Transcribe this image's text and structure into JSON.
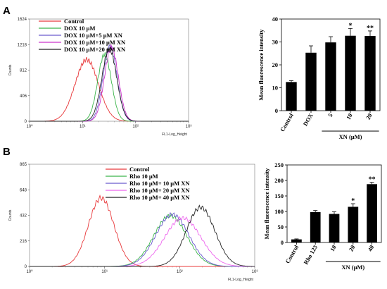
{
  "chart_data": [
    {
      "panel": "A",
      "type": "line",
      "subtype": "flow-cytometry-histogram",
      "xlabel": "FL1-Log_Height",
      "ylabel": "Counts",
      "x_scale": "log",
      "xlim": [
        1,
        1000
      ],
      "ylim": [
        0,
        1624
      ],
      "x_ticks": [
        "10⁰",
        "10¹",
        "10²",
        "10³"
      ],
      "y_ticks": [
        "0",
        "406",
        "812",
        "1218",
        "1624"
      ],
      "legend_placement": "top-left",
      "series": [
        {
          "name": "Control",
          "color": "#e8383a",
          "peak_x": 12,
          "peak_y": 980,
          "width": 0.22
        },
        {
          "name": "DOX 10 μM",
          "color": "#3bb54a",
          "peak_x": 26,
          "peak_y": 1060,
          "width": 0.13
        },
        {
          "name": "DOX 10 μM+5 μM XN",
          "color": "#6a5acd",
          "peak_x": 33,
          "peak_y": 1185,
          "width": 0.13
        },
        {
          "name": "DOX 10 μM+10 μM XN",
          "color": "#cc33cc",
          "peak_x": 35,
          "peak_y": 1175,
          "width": 0.13
        },
        {
          "name": "DOX 10 μM+20 μM XN",
          "color": "#222222",
          "peak_x": 32,
          "peak_y": 1150,
          "width": 0.14
        }
      ]
    },
    {
      "panel": "A",
      "type": "bar",
      "ylabel": "Mean fluorescence intensity",
      "ylim": [
        0,
        40
      ],
      "y_ticks": [
        0,
        10,
        20,
        30,
        40
      ],
      "categories": [
        "Control",
        "DOX",
        "5",
        "10",
        "20"
      ],
      "values": [
        12.5,
        25.3,
        29.8,
        32.7,
        32.6
      ],
      "errors": [
        0.6,
        3.0,
        2.5,
        3.2,
        2.2
      ],
      "significance": [
        "",
        "",
        "",
        "*",
        "**"
      ],
      "group_label": "XN (μM)",
      "group_span": [
        2,
        4
      ]
    },
    {
      "panel": "B",
      "type": "line",
      "subtype": "flow-cytometry-histogram",
      "xlabel": "FL1-Log_Height",
      "ylabel": "Counts",
      "x_scale": "log",
      "xlim": [
        1,
        1000
      ],
      "ylim": [
        0,
        865
      ],
      "x_ticks": [
        "10⁰",
        "10¹",
        "10²",
        "10³"
      ],
      "y_ticks": [
        "0",
        "216",
        "432",
        "648",
        "865"
      ],
      "legend_placement": "top-center",
      "series": [
        {
          "name": "Control",
          "color": "#e8383a",
          "peak_x": 9,
          "peak_y": 580,
          "width": 0.17
        },
        {
          "name": "Rho 10 μM",
          "color": "#3bb54a",
          "peak_x": 75,
          "peak_y": 430,
          "width": 0.22
        },
        {
          "name": "Rho 10 μM+ 10 μM XN",
          "color": "#6a5acd",
          "peak_x": 80,
          "peak_y": 440,
          "width": 0.22
        },
        {
          "name": "Rho 10 μM+ 20 μM XN",
          "color": "#ee66ee",
          "peak_x": 110,
          "peak_y": 410,
          "width": 0.24
        },
        {
          "name": "Rho 10 μM+ 40 μM XN",
          "color": "#222222",
          "peak_x": 190,
          "peak_y": 500,
          "width": 0.19
        }
      ]
    },
    {
      "panel": "B",
      "type": "bar",
      "ylabel": "Mean fluorescence intensity",
      "ylim": [
        0,
        250
      ],
      "y_ticks": [
        0,
        50,
        100,
        150,
        200,
        250
      ],
      "categories": [
        "Control",
        "Rho 123",
        "10",
        "20",
        "40"
      ],
      "values": [
        10,
        98,
        92,
        115,
        188
      ],
      "errors": [
        1.5,
        5,
        7,
        10,
        6
      ],
      "significance": [
        "",
        "",
        "",
        "*",
        "**"
      ],
      "group_label": "XN (μM)",
      "group_span": [
        2,
        4
      ]
    }
  ],
  "panels": [
    "A",
    "B"
  ]
}
